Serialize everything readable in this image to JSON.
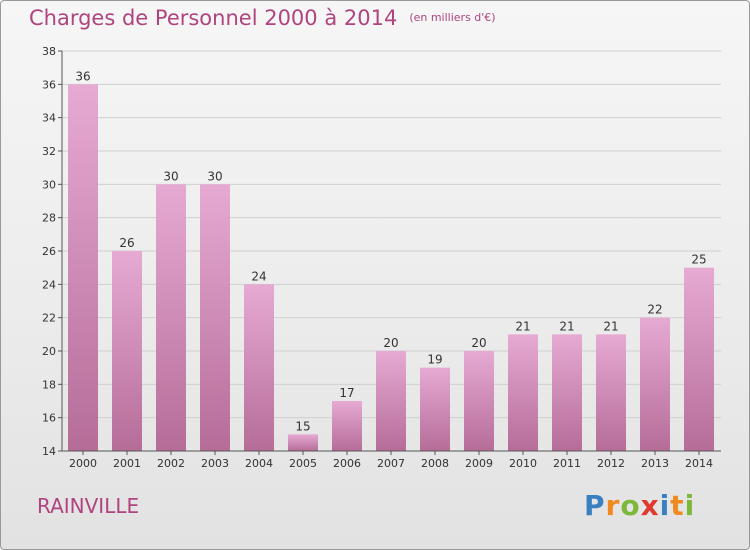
{
  "header": {
    "title": "Charges de Personnel 2000 à 2014",
    "unit": "(en milliers d'€)"
  },
  "footer": {
    "town": "RAINVILLE",
    "logo": [
      "P",
      "r",
      "o",
      "x",
      "i",
      "t",
      "i"
    ],
    "logo_colors": [
      "#3a7fc1",
      "#f08a1e",
      "#7cb83a",
      "#e03a2f",
      "#3a7fc1",
      "#f08a1e",
      "#7cb83a"
    ]
  },
  "colors": {
    "title": "#b0447f",
    "bar_top": "#e6aad3",
    "bar_bottom": "#b56d98"
  },
  "chart_data": {
    "type": "bar",
    "categories": [
      "2000",
      "2001",
      "2002",
      "2003",
      "2004",
      "2005",
      "2006",
      "2007",
      "2008",
      "2009",
      "2010",
      "2011",
      "2012",
      "2013",
      "2014"
    ],
    "values": [
      36,
      26,
      30,
      30,
      24,
      15,
      17,
      20,
      19,
      20,
      21,
      21,
      21,
      22,
      25
    ],
    "title": "Charges de Personnel 2000 à 2014",
    "ylim": [
      14,
      38
    ],
    "yticks": [
      14,
      16,
      18,
      20,
      22,
      24,
      26,
      28,
      30,
      32,
      34,
      36,
      38
    ],
    "grid": true
  }
}
